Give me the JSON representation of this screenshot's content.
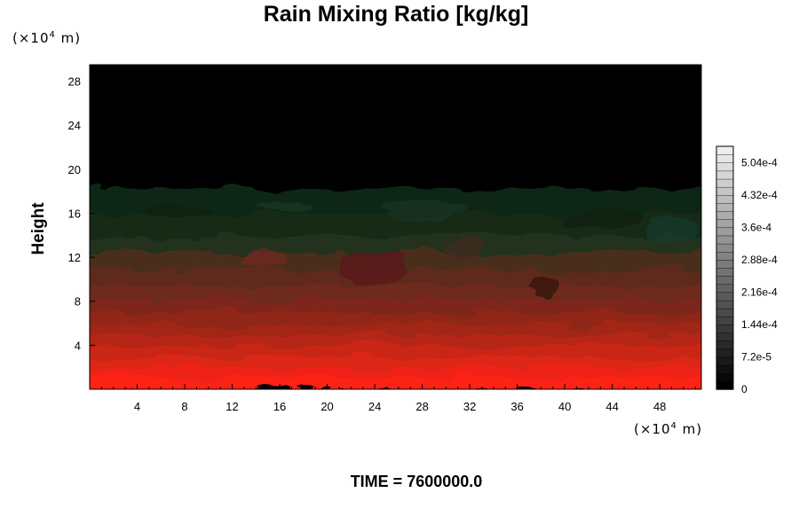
{
  "chart_data": {
    "type": "heatmap",
    "title": "Rain Mixing Ratio [kg/kg]",
    "ylabel": "Height",
    "xlabel": "",
    "x_unit": {
      "prefix": "(×10",
      "exp": "4",
      "suffix": " m)"
    },
    "y_unit": {
      "prefix": "(×10",
      "exp": "4",
      "suffix": " m)"
    },
    "xlim": [
      0,
      51.5
    ],
    "ylim": [
      0,
      29.5
    ],
    "x_ticks": [
      4,
      8,
      12,
      16,
      20,
      24,
      28,
      32,
      36,
      40,
      44,
      48
    ],
    "x_tick_labels": [
      "4",
      "8",
      "12",
      "16",
      "20",
      "24",
      "28",
      "32",
      "36",
      "40",
      "44",
      "48"
    ],
    "y_ticks": [
      4,
      8,
      12,
      16,
      20,
      24,
      28
    ],
    "y_tick_labels": [
      "4",
      "8",
      "12",
      "16",
      "20",
      "24",
      "28"
    ],
    "field_bands": [
      {
        "y_from": 0,
        "y_to": 1.2,
        "color": "#fd2312"
      },
      {
        "y_from": 1.2,
        "y_to": 2.0,
        "color": "#ee2414"
      },
      {
        "y_from": 2.0,
        "y_to": 3.0,
        "color": "#dc2616"
      },
      {
        "y_from": 3.0,
        "y_to": 4.0,
        "color": "#c92617"
      },
      {
        "y_from": 4.0,
        "y_to": 5.0,
        "color": "#b52618"
      },
      {
        "y_from": 5.0,
        "y_to": 6.0,
        "color": "#a22619"
      },
      {
        "y_from": 6.0,
        "y_to": 7.0,
        "color": "#902719"
      },
      {
        "y_from": 7.0,
        "y_to": 8.2,
        "color": "#7e271b"
      },
      {
        "y_from": 8.2,
        "y_to": 9.5,
        "color": "#6e2a1c"
      },
      {
        "y_from": 9.5,
        "y_to": 11.0,
        "color": "#5e2a1c"
      },
      {
        "y_from": 11.0,
        "y_to": 12.5,
        "color": "#4a2d1f"
      },
      {
        "y_from": 12.5,
        "y_to": 14.0,
        "color": "#23301f"
      },
      {
        "y_from": 14.0,
        "y_to": 16.0,
        "color": "#152b19"
      },
      {
        "y_from": 16.0,
        "y_to": 18.3,
        "color": "#0f2714"
      },
      {
        "y_from": 18.3,
        "y_to": 29.5,
        "color": "#000000"
      }
    ],
    "colorbar": {
      "min": 0,
      "max": 0.00054,
      "levels": 30,
      "tick_values": [
        0,
        7.2e-05,
        0.000144,
        0.000216,
        0.000288,
        0.00036,
        0.000432,
        0.000504
      ],
      "tick_labels": [
        "0",
        "7.2e-5",
        "1.44e-4",
        "2.16e-4",
        "2.88e-4",
        "3.6e-4",
        "4.32e-4",
        "5.04e-4"
      ]
    },
    "annotation": "TIME = 7600000.0"
  }
}
